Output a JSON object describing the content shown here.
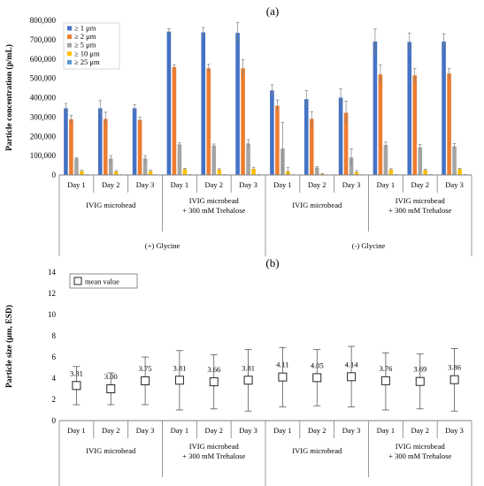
{
  "chart_data": [
    {
      "panel_label": "(a)",
      "type": "bar",
      "ylabel": "Particle concentration (p/mL)",
      "ylim": [
        0,
        800000
      ],
      "yticks": [
        "0",
        "100,000",
        "200,000",
        "300,000",
        "400,000",
        "500,000",
        "600,000",
        "700,000",
        "800,000"
      ],
      "categories": [
        "Day 1",
        "Day 2",
        "Day 3",
        "Day 1",
        "Day 2",
        "Day 3",
        "Day 1",
        "Day 2",
        "Day 3",
        "Day 1",
        "Day 2",
        "Day 3"
      ],
      "groups": [
        "IVIG microbead",
        "IVIG microbead\n+ 300 mM Trehalose",
        "IVIG microbead",
        "IVIG microbead\n+ 300 mM Trehalose"
      ],
      "supergroups": [
        "(+) Glycine",
        "(-) Glycine"
      ],
      "legend_position": "top-left",
      "series": [
        {
          "name": "≥ 1 μm",
          "color": "#4472C4",
          "values": [
            345000,
            345000,
            345000,
            742000,
            738000,
            735000,
            437000,
            392000,
            400000,
            690000,
            688000,
            690000
          ],
          "errors": [
            25000,
            40000,
            18000,
            15000,
            25000,
            55000,
            30000,
            45000,
            45000,
            65000,
            45000,
            40000
          ]
        },
        {
          "name": "≥ 2 μm",
          "color": "#ED7D31",
          "values": [
            288000,
            290000,
            285000,
            558000,
            552000,
            552000,
            358000,
            290000,
            322000,
            520000,
            515000,
            525000
          ],
          "errors": [
            20000,
            35000,
            15000,
            12000,
            20000,
            45000,
            30000,
            38000,
            60000,
            50000,
            35000,
            25000
          ]
        },
        {
          "name": "≥ 5 μm",
          "color": "#A5A5A5",
          "values": [
            85000,
            85000,
            85000,
            158000,
            152000,
            163000,
            137000,
            38000,
            90000,
            155000,
            143000,
            148000
          ],
          "errors": [
            5000,
            15000,
            15000,
            8000,
            8000,
            20000,
            135000,
            5000,
            45000,
            15000,
            15000,
            15000
          ]
        },
        {
          "name": "≥ 10 μm",
          "color": "#FFC000",
          "values": [
            20000,
            18000,
            20000,
            30000,
            28000,
            32000,
            20000,
            5000,
            15000,
            28000,
            25000,
            30000
          ],
          "errors": [
            5000,
            5000,
            5000,
            5000,
            5000,
            8000,
            18000,
            3000,
            8000,
            5000,
            5000,
            5000
          ]
        },
        {
          "name": "≥ 25 μm",
          "color": "#5B9BD5",
          "values": [
            1000,
            1000,
            1000,
            1500,
            1500,
            1500,
            1000,
            500,
            800,
            1500,
            1500,
            1500
          ],
          "errors": [
            500,
            500,
            500,
            500,
            500,
            500,
            500,
            300,
            500,
            500,
            500,
            500
          ]
        }
      ]
    },
    {
      "panel_label": "(b)",
      "type": "scatter",
      "ylabel": "Particle size (μm, ESD)",
      "ylim": [
        0,
        14
      ],
      "yticks": [
        "0",
        "2",
        "4",
        "6",
        "8",
        "10",
        "12",
        "14"
      ],
      "categories": [
        "Day 1",
        "Day 2",
        "Day 3",
        "Day 1",
        "Day 2",
        "Day 3",
        "Day 1",
        "Day 2",
        "Day 3",
        "Day 1",
        "Day 2",
        "Day 3"
      ],
      "groups": [
        "IVIG microbead",
        "IVIG microbead\n+ 300 mM Trehalose",
        "IVIG microbead",
        "IVIG microbead\n+ 300 mM Trehalose"
      ],
      "supergroups": [
        "(+) Glycine",
        "(-) Glycine"
      ],
      "legend_position": "top-left",
      "series": [
        {
          "name": "mean value",
          "values": [
            3.31,
            3.0,
            3.75,
            3.81,
            3.66,
            3.81,
            4.11,
            4.05,
            4.14,
            3.76,
            3.69,
            3.86
          ],
          "labels": [
            "3.31",
            "3.00",
            "3.75",
            "3.81",
            "3.66",
            "3.81",
            "4.11",
            "4.05",
            "4.14",
            "3.76",
            "3.69",
            "3.86"
          ],
          "err_high": [
            5.1,
            4.5,
            6.0,
            6.6,
            6.2,
            6.7,
            6.9,
            6.7,
            7.0,
            6.4,
            6.3,
            6.8
          ],
          "err_low": [
            1.5,
            1.5,
            1.5,
            1.0,
            1.1,
            0.9,
            1.3,
            1.4,
            1.3,
            1.0,
            1.1,
            0.9
          ]
        }
      ]
    }
  ]
}
